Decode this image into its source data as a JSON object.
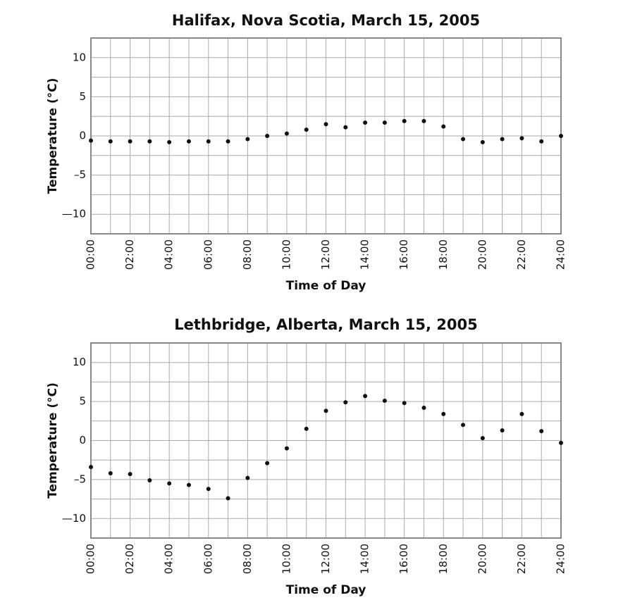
{
  "chart_data": [
    {
      "type": "scatter",
      "title": "Halifax, Nova Scotia, March 15, 2005",
      "x_label": "Time of Day",
      "y_label": "Temperature (°C)",
      "categories": [
        "00:00",
        null,
        "02:00",
        null,
        "04:00",
        null,
        "06:00",
        null,
        "08:00",
        null,
        "10:00",
        null,
        "12:00",
        null,
        "14:00",
        null,
        "16:00",
        null,
        "18:00",
        null,
        "20:00",
        null,
        "22:00",
        null,
        "24:00"
      ],
      "values": [
        -0.6,
        -0.7,
        -0.7,
        -0.7,
        -0.8,
        -0.7,
        -0.7,
        -0.7,
        -0.4,
        0.0,
        0.3,
        0.8,
        1.5,
        1.1,
        1.7,
        1.7,
        1.9,
        1.9,
        1.2,
        -0.4,
        -0.8,
        -0.4,
        -0.3,
        -0.7,
        0.0
      ],
      "color": "#111111",
      "ylim": [
        -12.5,
        12.5
      ],
      "yticks": [
        {
          "value": -10,
          "label": "—10"
        },
        {
          "value": -5,
          "label": "–5"
        },
        0,
        5,
        10
      ],
      "minor_yticks": [
        -7.5,
        -2.5,
        2.5,
        7.5
      ],
      "grid": true
    },
    {
      "type": "scatter",
      "title": "Lethbridge, Alberta, March 15, 2005",
      "x_label": "Time of Day",
      "y_label": "Temperature (°C)",
      "categories": [
        "00:00",
        null,
        "02:00",
        null,
        "04:00",
        null,
        "06:00",
        null,
        "08:00",
        null,
        "10:00",
        null,
        "12:00",
        null,
        "14:00",
        null,
        "16:00",
        null,
        "18:00",
        null,
        "20:00",
        null,
        "22:00",
        null,
        "24:00"
      ],
      "values": [
        -3.4,
        -4.2,
        -4.3,
        -5.1,
        -5.5,
        -5.7,
        -6.2,
        -7.4,
        -4.8,
        -2.9,
        -1.0,
        1.5,
        3.8,
        4.9,
        5.7,
        5.1,
        4.8,
        4.2,
        3.4,
        2.0,
        0.3,
        1.3,
        3.4,
        1.2,
        -0.3
      ],
      "color": "#111111",
      "ylim": [
        -12.5,
        12.5
      ],
      "yticks": [
        {
          "value": -10,
          "label": "—10"
        },
        {
          "value": -5,
          "label": "–5"
        },
        0,
        5,
        10
      ],
      "minor_yticks": [
        -7.5,
        -2.5,
        2.5,
        7.5
      ],
      "grid": true
    }
  ]
}
